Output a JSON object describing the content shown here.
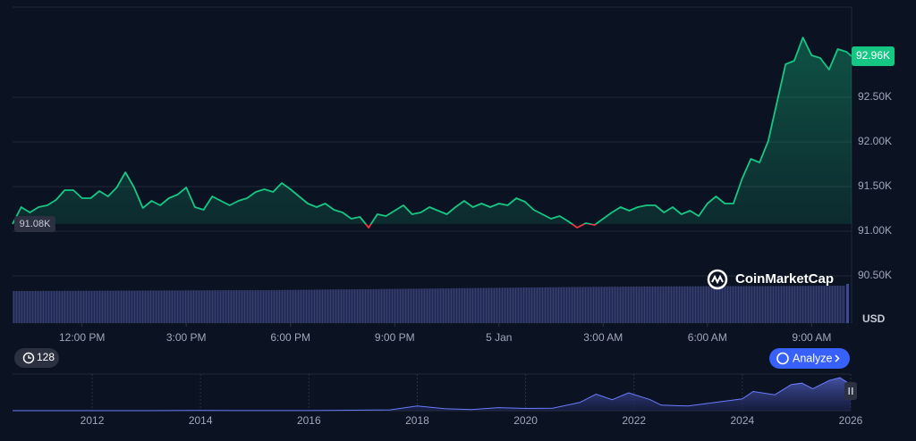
{
  "chart_data": [
    {
      "type": "line",
      "x": [
        10,
        10.25,
        10.5,
        10.75,
        11,
        11.25,
        11.5,
        11.75,
        12,
        12.25,
        12.5,
        12.75,
        13,
        13.25,
        13.5,
        13.75,
        14,
        14.25,
        14.5,
        14.75,
        15,
        15.25,
        15.5,
        15.75,
        16,
        16.25,
        16.5,
        16.75,
        17,
        17.25,
        17.5,
        17.75,
        18,
        18.25,
        18.5,
        18.75,
        19,
        19.25,
        19.5,
        19.75,
        20,
        20.25,
        20.5,
        20.75,
        21,
        21.25,
        21.5,
        21.75,
        22,
        22.25,
        22.5,
        22.75,
        23,
        23.25,
        23.5,
        23.75,
        24,
        24.25,
        24.5,
        24.75,
        25,
        25.25,
        25.5,
        25.75,
        26,
        26.25,
        26.5,
        26.75,
        27,
        27.25,
        27.5,
        27.75,
        28,
        28.25,
        28.5,
        28.75,
        29,
        29.25,
        29.5,
        29.75,
        30,
        30.25,
        30.5,
        30.75,
        31,
        31.25,
        31.5,
        31.75,
        32,
        32.25,
        32.5,
        32.75,
        33,
        33.25,
        33.5,
        33.75,
        34,
        34.15
      ],
      "values": [
        91080,
        91270,
        91210,
        91270,
        91290,
        91350,
        91460,
        91460,
        91370,
        91370,
        91450,
        91390,
        91490,
        91660,
        91490,
        91260,
        91340,
        91290,
        91370,
        91410,
        91490,
        91270,
        91240,
        91390,
        91340,
        91290,
        91340,
        91370,
        91440,
        91470,
        91440,
        91540,
        91470,
        91390,
        91310,
        91270,
        91310,
        91240,
        91210,
        91140,
        91160,
        91040,
        91190,
        91170,
        91230,
        91290,
        91190,
        91210,
        91270,
        91230,
        91190,
        91270,
        91340,
        91270,
        91310,
        91270,
        91310,
        91290,
        91370,
        91330,
        91240,
        91190,
        91140,
        91170,
        91110,
        91040,
        91090,
        91070,
        91140,
        91210,
        91270,
        91230,
        91270,
        91290,
        91290,
        91210,
        91270,
        91190,
        91230,
        91170,
        91310,
        91390,
        91310,
        91310,
        91590,
        91810,
        91770,
        92010,
        92440,
        92870,
        92910,
        93170,
        92970,
        92940,
        92810,
        93040,
        93010,
        92960
      ],
      "color": "#16c784",
      "down_color": "#ea3943",
      "xlim": [
        10,
        34.15
      ],
      "xticks": [
        {
          "value": 12,
          "label": "12:00 PM"
        },
        {
          "value": 15,
          "label": "3:00 PM"
        },
        {
          "value": 18,
          "label": "6:00 PM"
        },
        {
          "value": 21,
          "label": "9:00 PM"
        },
        {
          "value": 24,
          "label": "5 Jan"
        },
        {
          "value": 27,
          "label": "3:00 AM"
        },
        {
          "value": 30,
          "label": "6:00 AM"
        },
        {
          "value": 33,
          "label": "9:00 AM"
        }
      ],
      "ylim": [
        89970,
        93510
      ],
      "yticks": [
        {
          "value": 90500,
          "label": "90.50K"
        },
        {
          "value": 91000,
          "label": "91.00K"
        },
        {
          "value": 91500,
          "label": "91.50K"
        },
        {
          "value": 92000,
          "label": "92.00K"
        },
        {
          "value": 92500,
          "label": "92.50K"
        }
      ],
      "grid": true,
      "start_price": {
        "value": 91080,
        "label": "91.08K"
      },
      "current_price": {
        "value": 92960,
        "label": "92.96K"
      },
      "currency": "USD",
      "watermark": "CoinMarketCap",
      "history_badge": "128",
      "button": "Analyze"
    },
    {
      "type": "area",
      "x": [
        2010.53,
        2013,
        2014,
        2016,
        2017.5,
        2018,
        2018.5,
        2019,
        2019.5,
        2020,
        2020.5,
        2021,
        2021.3,
        2021.6,
        2021.9,
        2022.3,
        2022.5,
        2023,
        2023.5,
        2024,
        2024.2,
        2024.6,
        2024.9,
        2025.1,
        2025.3,
        2025.6,
        2025.8,
        2026
      ],
      "values": [
        0,
        0,
        500,
        400,
        3000,
        17000,
        7000,
        4000,
        11000,
        8000,
        9000,
        30000,
        60000,
        40000,
        65000,
        40000,
        20000,
        17000,
        30000,
        43000,
        70000,
        58000,
        95000,
        100000,
        80000,
        110000,
        120000,
        95000
      ],
      "color": "#6b7cff",
      "xlim": [
        2010.53,
        2026
      ],
      "xticks": [
        2012,
        2014,
        2016,
        2018,
        2020,
        2022,
        2024,
        2026
      ],
      "ylim": [
        0,
        130000
      ]
    }
  ]
}
